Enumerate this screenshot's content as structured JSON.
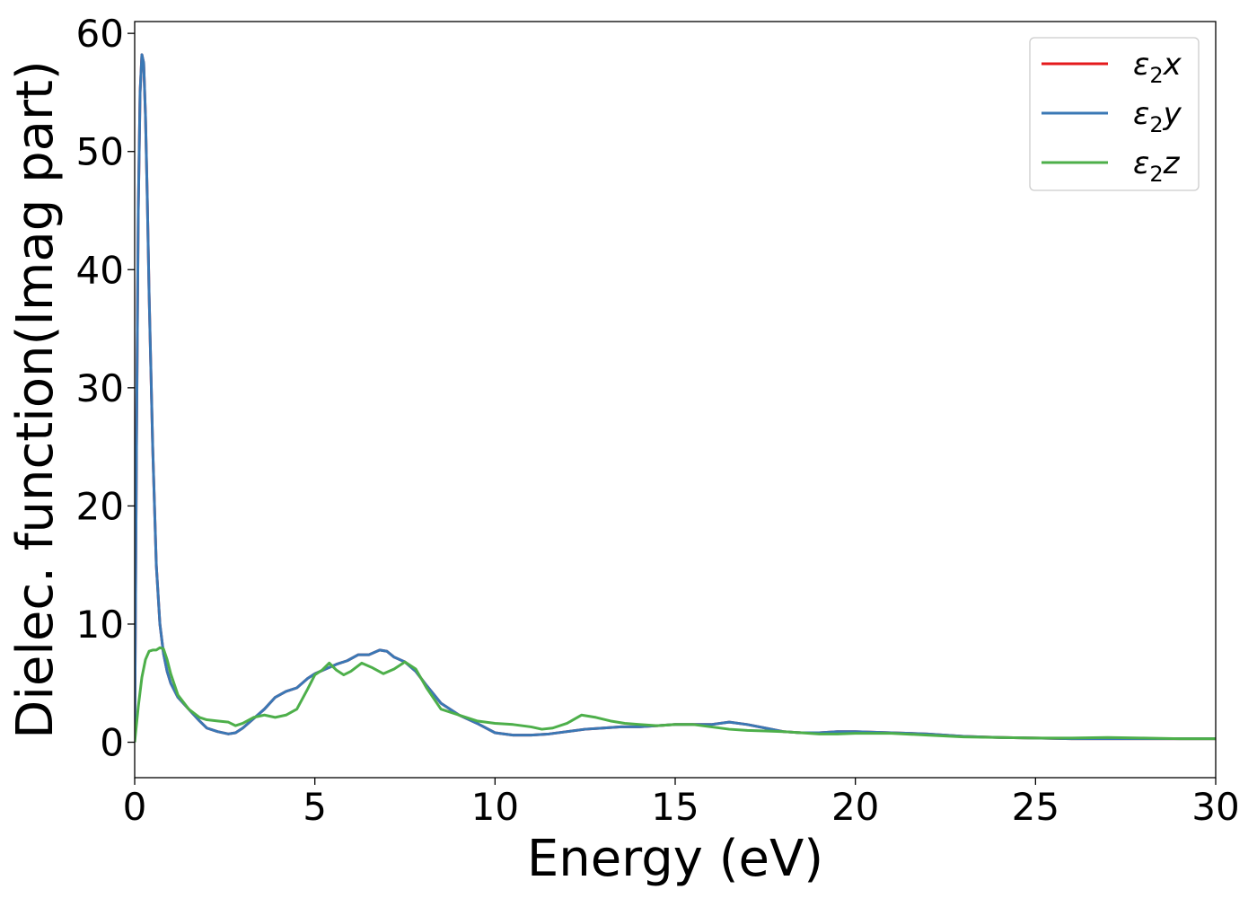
{
  "chart_data": {
    "type": "line",
    "title": "",
    "xlabel": "Energy (eV)",
    "ylabel": "Dielec. function(Imag part)",
    "xlim": [
      0,
      30
    ],
    "ylim": [
      -3,
      61
    ],
    "xticks": [
      0,
      5,
      10,
      15,
      20,
      25,
      30
    ],
    "yticks": [
      0,
      10,
      20,
      30,
      40,
      50,
      60
    ],
    "grid": false,
    "legend_position": "top-right",
    "series": [
      {
        "name": "ε₂x",
        "legend_base": "ε",
        "legend_sub": "2",
        "legend_var": "x",
        "color": "#e41a1c",
        "x": [
          0,
          0.02,
          0.05,
          0.1,
          0.15,
          0.2,
          0.25,
          0.3,
          0.35,
          0.4,
          0.5,
          0.6,
          0.7,
          0.8,
          0.9,
          1.0,
          1.2,
          1.5,
          1.8,
          2.0,
          2.3,
          2.6,
          2.8,
          3.0,
          3.3,
          3.6,
          3.9,
          4.2,
          4.5,
          4.8,
          5.0,
          5.3,
          5.6,
          5.9,
          6.2,
          6.5,
          6.8,
          7.0,
          7.2,
          7.5,
          7.8,
          8.1,
          8.5,
          9.0,
          9.5,
          10.0,
          10.5,
          11.0,
          11.5,
          12.0,
          12.5,
          13.0,
          13.5,
          14.0,
          14.5,
          15.0,
          15.5,
          16.0,
          16.5,
          17.0,
          17.5,
          18.0,
          18.5,
          19.0,
          19.5,
          20.0,
          21.0,
          22.0,
          23.0,
          24.0,
          25.0,
          26.0,
          27.0,
          28.0,
          29.0,
          30.0
        ],
        "y": [
          0,
          10,
          25,
          45,
          55,
          58.2,
          57.5,
          53,
          46,
          38,
          25,
          15,
          10,
          7.5,
          6,
          5,
          3.8,
          2.8,
          1.8,
          1.2,
          0.9,
          0.7,
          0.8,
          1.2,
          2.0,
          2.8,
          3.8,
          4.3,
          4.6,
          5.4,
          5.8,
          6.2,
          6.6,
          6.9,
          7.4,
          7.4,
          7.8,
          7.7,
          7.2,
          6.8,
          6.0,
          4.8,
          3.3,
          2.3,
          1.6,
          0.8,
          0.6,
          0.6,
          0.7,
          0.9,
          1.1,
          1.2,
          1.3,
          1.3,
          1.4,
          1.5,
          1.5,
          1.5,
          1.7,
          1.5,
          1.2,
          0.9,
          0.8,
          0.8,
          0.9,
          0.9,
          0.8,
          0.7,
          0.5,
          0.4,
          0.35,
          0.3,
          0.3,
          0.3,
          0.3,
          0.3
        ]
      },
      {
        "name": "ε₂y",
        "legend_base": "ε",
        "legend_sub": "2",
        "legend_var": "y",
        "color": "#3a78b5",
        "x": [
          0,
          0.02,
          0.05,
          0.1,
          0.15,
          0.2,
          0.25,
          0.3,
          0.35,
          0.4,
          0.5,
          0.6,
          0.7,
          0.8,
          0.9,
          1.0,
          1.2,
          1.5,
          1.8,
          2.0,
          2.3,
          2.6,
          2.8,
          3.0,
          3.3,
          3.6,
          3.9,
          4.2,
          4.5,
          4.8,
          5.0,
          5.3,
          5.6,
          5.9,
          6.2,
          6.5,
          6.8,
          7.0,
          7.2,
          7.5,
          7.8,
          8.1,
          8.5,
          9.0,
          9.5,
          10.0,
          10.5,
          11.0,
          11.5,
          12.0,
          12.5,
          13.0,
          13.5,
          14.0,
          14.5,
          15.0,
          15.5,
          16.0,
          16.5,
          17.0,
          17.5,
          18.0,
          18.5,
          19.0,
          19.5,
          20.0,
          21.0,
          22.0,
          23.0,
          24.0,
          25.0,
          26.0,
          27.0,
          28.0,
          29.0,
          30.0
        ],
        "y": [
          0,
          10,
          25,
          45,
          55,
          58.2,
          57.5,
          53,
          46,
          38,
          25,
          15,
          10,
          7.5,
          6,
          5,
          3.8,
          2.8,
          1.8,
          1.2,
          0.9,
          0.7,
          0.8,
          1.2,
          2.0,
          2.8,
          3.8,
          4.3,
          4.6,
          5.4,
          5.8,
          6.2,
          6.6,
          6.9,
          7.4,
          7.4,
          7.8,
          7.7,
          7.2,
          6.8,
          6.0,
          4.8,
          3.3,
          2.3,
          1.6,
          0.8,
          0.6,
          0.6,
          0.7,
          0.9,
          1.1,
          1.2,
          1.3,
          1.3,
          1.4,
          1.5,
          1.5,
          1.5,
          1.7,
          1.5,
          1.2,
          0.9,
          0.8,
          0.8,
          0.9,
          0.9,
          0.8,
          0.7,
          0.5,
          0.4,
          0.35,
          0.3,
          0.3,
          0.3,
          0.3,
          0.3
        ]
      },
      {
        "name": "ε₂z",
        "legend_base": "ε",
        "legend_sub": "2",
        "legend_var": "z",
        "color": "#4daf4a",
        "x": [
          0,
          0.1,
          0.2,
          0.3,
          0.4,
          0.5,
          0.6,
          0.7,
          0.8,
          0.9,
          1.0,
          1.2,
          1.5,
          1.8,
          2.0,
          2.3,
          2.6,
          2.8,
          3.0,
          3.3,
          3.6,
          3.9,
          4.2,
          4.5,
          4.8,
          5.0,
          5.2,
          5.4,
          5.6,
          5.8,
          6.0,
          6.3,
          6.6,
          6.9,
          7.2,
          7.5,
          7.8,
          8.1,
          8.5,
          9.0,
          9.5,
          10.0,
          10.5,
          11.0,
          11.3,
          11.6,
          12.0,
          12.4,
          12.8,
          13.2,
          13.6,
          14.0,
          14.5,
          15.0,
          15.5,
          16.0,
          16.5,
          17.0,
          17.5,
          18.0,
          18.5,
          19.0,
          19.5,
          20.0,
          21.0,
          22.0,
          23.0,
          24.0,
          25.0,
          26.0,
          27.0,
          28.0,
          29.0,
          30.0
        ],
        "y": [
          0,
          3,
          5.5,
          7.0,
          7.7,
          7.8,
          7.8,
          8.0,
          7.9,
          7.0,
          5.8,
          4.0,
          2.8,
          2.1,
          1.9,
          1.8,
          1.7,
          1.4,
          1.6,
          2.1,
          2.3,
          2.1,
          2.3,
          2.8,
          4.5,
          5.7,
          6.1,
          6.7,
          6.1,
          5.7,
          6.0,
          6.7,
          6.3,
          5.8,
          6.2,
          6.8,
          6.2,
          4.6,
          2.8,
          2.3,
          1.8,
          1.6,
          1.5,
          1.3,
          1.1,
          1.2,
          1.6,
          2.3,
          2.1,
          1.8,
          1.6,
          1.5,
          1.4,
          1.5,
          1.5,
          1.3,
          1.1,
          1.0,
          0.95,
          0.9,
          0.8,
          0.7,
          0.7,
          0.75,
          0.75,
          0.6,
          0.45,
          0.4,
          0.35,
          0.35,
          0.4,
          0.35,
          0.3,
          0.3
        ]
      }
    ]
  }
}
